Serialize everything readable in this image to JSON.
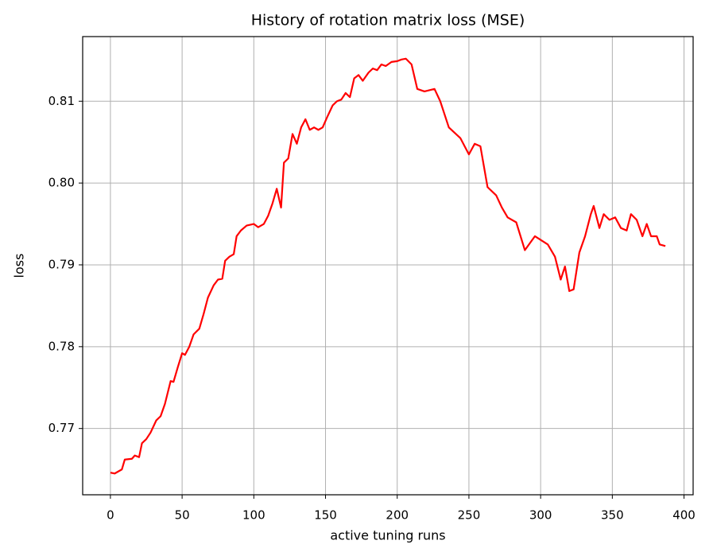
{
  "chart_data": {
    "type": "line",
    "title": "History of rotation matrix loss (MSE)",
    "xlabel": "active tuning runs",
    "ylabel": "loss",
    "xlim": [
      -19.35,
      406.35
    ],
    "ylim": [
      0.7619,
      0.8179
    ],
    "xticks": [
      0,
      50,
      100,
      150,
      200,
      250,
      300,
      350,
      400
    ],
    "yticks": [
      0.77,
      0.78,
      0.79,
      {
        "value": 0.8,
        "label": "0.80"
      },
      0.81
    ],
    "grid": true,
    "x": [
      0,
      3,
      8,
      10,
      15,
      17,
      20,
      22,
      25,
      28,
      32,
      35,
      38,
      42,
      44,
      47,
      50,
      52,
      55,
      58,
      62,
      65,
      68,
      72,
      75,
      78,
      80,
      83,
      86,
      88,
      91,
      95,
      100,
      103,
      107,
      110,
      113,
      116,
      119,
      121,
      124,
      127,
      130,
      133,
      136,
      139,
      142,
      145,
      148,
      151,
      155,
      158,
      161,
      164,
      167,
      170,
      173,
      176,
      180,
      183,
      186,
      189,
      192,
      196,
      200,
      203,
      206,
      210,
      214,
      219,
      226,
      230,
      236,
      244,
      250,
      254,
      258,
      263,
      269,
      273,
      277,
      283,
      289,
      296,
      305,
      310,
      314,
      317,
      320,
      323,
      327,
      331,
      335,
      337,
      341,
      344,
      348,
      352,
      356,
      360,
      363,
      367,
      371,
      374,
      377,
      381,
      383,
      387
    ],
    "series": [
      {
        "name": "loss",
        "color": "#ff0000",
        "values": [
          0.7646,
          0.7645,
          0.765,
          0.7662,
          0.7663,
          0.7667,
          0.7665,
          0.7682,
          0.7687,
          0.7695,
          0.771,
          0.7715,
          0.773,
          0.7758,
          0.7757,
          0.7775,
          0.7792,
          0.779,
          0.78,
          0.7815,
          0.7822,
          0.784,
          0.786,
          0.7875,
          0.7882,
          0.7883,
          0.7905,
          0.791,
          0.7913,
          0.7935,
          0.7942,
          0.7948,
          0.795,
          0.7946,
          0.795,
          0.796,
          0.7975,
          0.7993,
          0.797,
          0.8025,
          0.803,
          0.806,
          0.8048,
          0.8068,
          0.8078,
          0.8065,
          0.8068,
          0.8065,
          0.8068,
          0.808,
          0.8095,
          0.81,
          0.8102,
          0.811,
          0.8105,
          0.8128,
          0.8132,
          0.8125,
          0.8135,
          0.814,
          0.8138,
          0.8145,
          0.8143,
          0.8148,
          0.8149,
          0.8151,
          0.8152,
          0.8145,
          0.8115,
          0.8112,
          0.8115,
          0.81,
          0.8068,
          0.8055,
          0.8035,
          0.8048,
          0.8045,
          0.7995,
          0.7985,
          0.797,
          0.7958,
          0.7952,
          0.7918,
          0.7935,
          0.7925,
          0.791,
          0.7882,
          0.7898,
          0.7868,
          0.787,
          0.7915,
          0.7935,
          0.7962,
          0.7972,
          0.7945,
          0.7962,
          0.7955,
          0.7958,
          0.7945,
          0.7942,
          0.7962,
          0.7955,
          0.7935,
          0.795,
          0.7935,
          0.7935,
          0.7925,
          0.7923
        ]
      }
    ]
  }
}
